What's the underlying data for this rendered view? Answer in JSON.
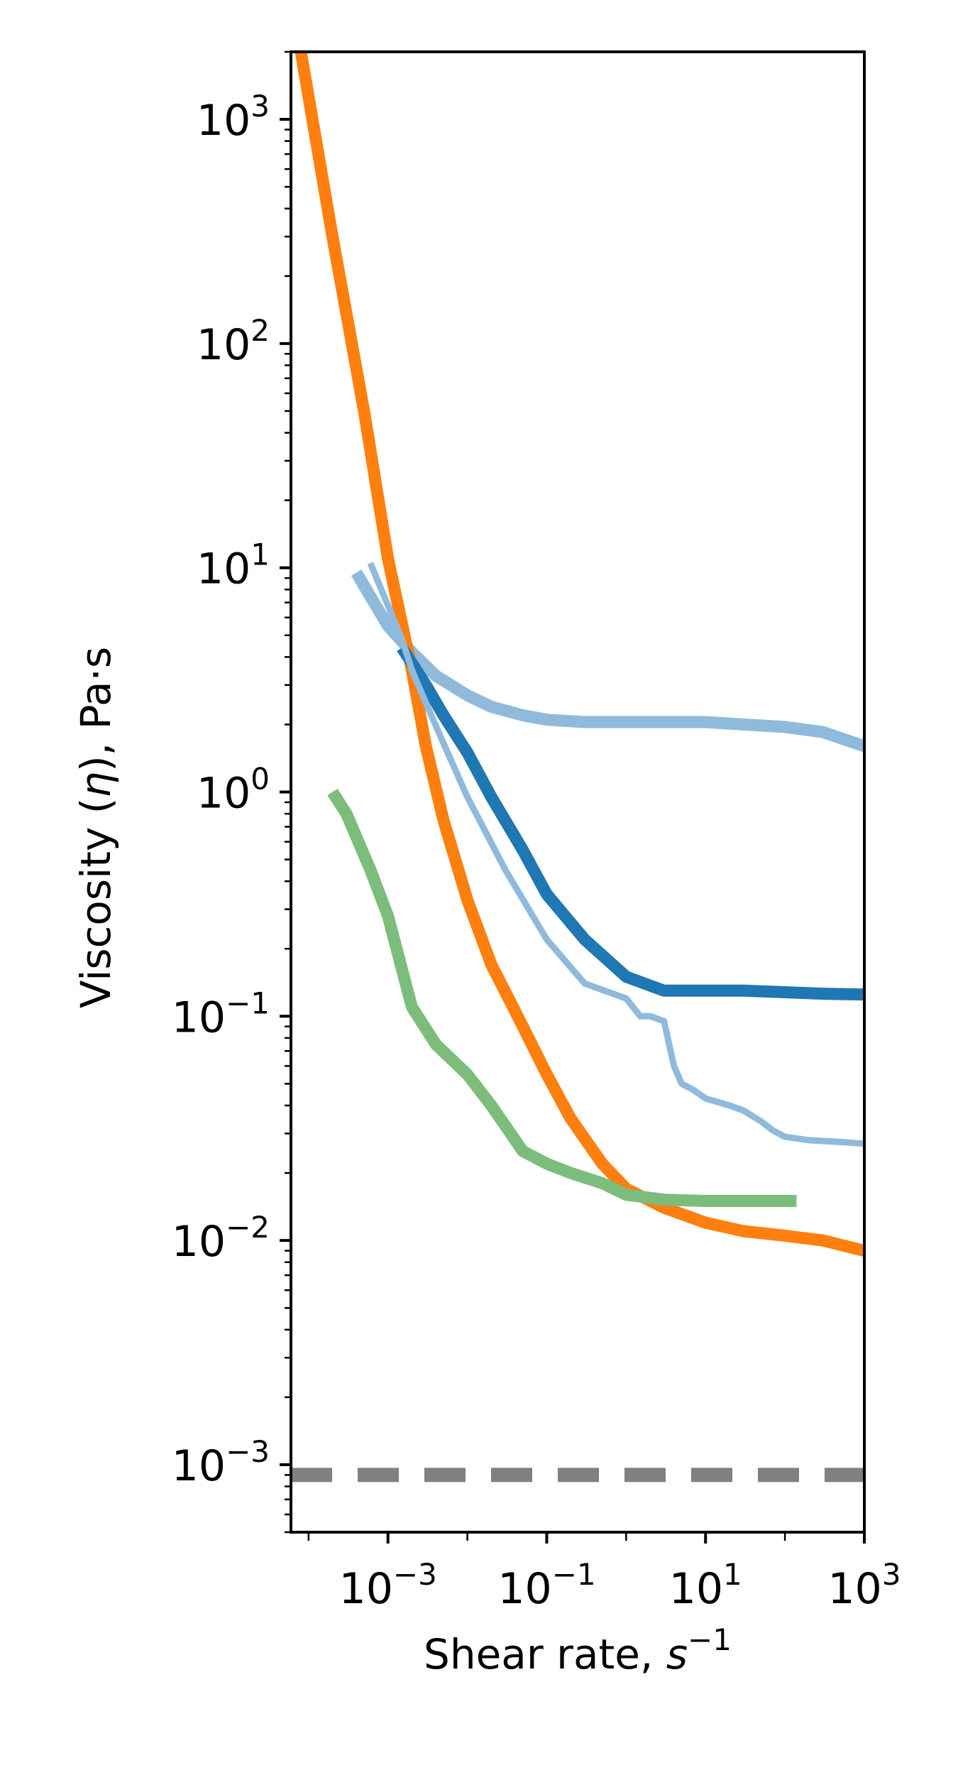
{
  "chart_data": {
    "type": "line",
    "xlabel": {
      "prefix": "Shear rate, ",
      "base": "s",
      "sup": "−1"
    },
    "ylabel": {
      "prefix": "Viscosity (",
      "symbol": "η",
      "suffix": "), Pa·s"
    },
    "x_scale": "log",
    "y_scale": "log",
    "xlim": [
      6e-05,
      1000
    ],
    "ylim": [
      0.0005,
      2000
    ],
    "x_ticks": [
      {
        "value": 0.001,
        "base": "10",
        "exp": "−3"
      },
      {
        "value": 0.1,
        "base": "10",
        "exp": "−1"
      },
      {
        "value": 10,
        "base": "10",
        "exp": "1"
      },
      {
        "value": 1000,
        "base": "10",
        "exp": "3"
      }
    ],
    "y_ticks": [
      {
        "value": 0.001,
        "base": "10",
        "exp": "−3"
      },
      {
        "value": 0.01,
        "base": "10",
        "exp": "−2"
      },
      {
        "value": 0.1,
        "base": "10",
        "exp": "−1"
      },
      {
        "value": 1,
        "base": "10",
        "exp": "0"
      },
      {
        "value": 10,
        "base": "10",
        "exp": "1"
      },
      {
        "value": 100,
        "base": "10",
        "exp": "2"
      },
      {
        "value": 1000,
        "base": "10",
        "exp": "3"
      }
    ],
    "grid": false,
    "legend": false,
    "reference_line": {
      "y": 0.0009,
      "style": "dashed",
      "color": "#808080"
    },
    "series": [
      {
        "color": "#8fbadc",
        "style": "thick",
        "x": [
          0.0004,
          0.001,
          0.002,
          0.004,
          0.01,
          0.02,
          0.05,
          0.1,
          0.3,
          1,
          3,
          10,
          30,
          100,
          300,
          1000
        ],
        "y": [
          9.5,
          5.5,
          4.2,
          3.3,
          2.7,
          2.4,
          2.2,
          2.1,
          2.05,
          2.05,
          2.05,
          2.05,
          2.0,
          1.95,
          1.85,
          1.6
        ]
      },
      {
        "color": "#ff7f0e",
        "style": "thick",
        "x": [
          8e-05,
          0.0002,
          0.0005,
          0.001,
          0.002,
          0.003,
          0.005,
          0.01,
          0.02,
          0.05,
          0.1,
          0.2,
          0.5,
          1,
          3,
          10,
          30,
          100,
          300,
          1000
        ],
        "y": [
          2000,
          300,
          50,
          11,
          3.5,
          1.6,
          0.75,
          0.33,
          0.17,
          0.09,
          0.055,
          0.035,
          0.022,
          0.017,
          0.014,
          0.012,
          0.011,
          0.0105,
          0.01,
          0.009
        ]
      },
      {
        "color": "#1f77b4",
        "style": "thick",
        "x": [
          0.0015,
          0.003,
          0.005,
          0.01,
          0.02,
          0.05,
          0.1,
          0.3,
          1,
          3,
          10,
          30,
          100,
          300,
          1000
        ],
        "y": [
          4.4,
          3.0,
          2.2,
          1.5,
          0.95,
          0.55,
          0.35,
          0.22,
          0.15,
          0.13,
          0.13,
          0.13,
          0.128,
          0.126,
          0.125
        ]
      },
      {
        "color": "#8fbadc",
        "style": "thin",
        "x": [
          0.0006,
          0.0008,
          0.001,
          0.0015,
          0.002,
          0.003,
          0.005,
          0.01,
          0.03,
          0.1,
          0.3,
          1,
          1.5,
          2,
          3,
          4,
          5,
          7,
          10,
          20,
          30,
          50,
          70,
          100,
          200,
          500,
          1000
        ],
        "y": [
          10.5,
          8.2,
          6.8,
          4.8,
          3.5,
          2.5,
          1.65,
          0.95,
          0.45,
          0.22,
          0.14,
          0.12,
          0.1,
          0.1,
          0.095,
          0.06,
          0.05,
          0.047,
          0.043,
          0.04,
          0.038,
          0.034,
          0.031,
          0.029,
          0.028,
          0.0275,
          0.027
        ]
      },
      {
        "color": "#7cbd7c",
        "style": "thick",
        "x": [
          0.0002,
          0.0003,
          0.0006,
          0.001,
          0.002,
          0.004,
          0.01,
          0.02,
          0.05,
          0.1,
          0.2,
          0.5,
          1,
          3,
          10,
          30,
          100,
          140
        ],
        "y": [
          1.0,
          0.8,
          0.45,
          0.28,
          0.11,
          0.075,
          0.055,
          0.04,
          0.025,
          0.022,
          0.02,
          0.018,
          0.016,
          0.0152,
          0.015,
          0.015,
          0.015,
          0.015
        ]
      }
    ]
  }
}
